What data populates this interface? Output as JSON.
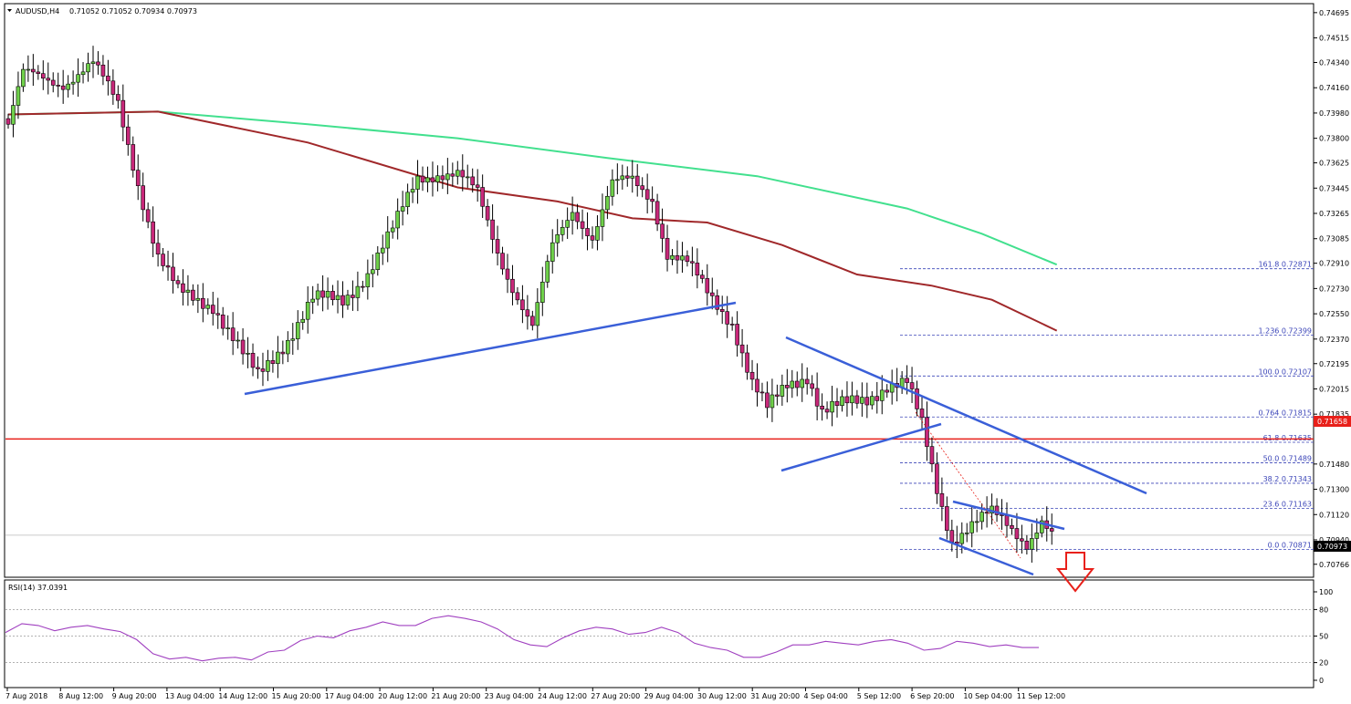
{
  "header": {
    "symbol": "AUDUSD,H4",
    "ohlc": "0.71052 0.71052 0.70934 0.70973"
  },
  "indicator": {
    "label": "RSI(14) 37.0391",
    "levels": [
      "100",
      "80",
      "50",
      "20",
      "0"
    ]
  },
  "colors": {
    "bull_fill": "#6fd04a",
    "bear_fill": "#c8287a",
    "wick": "#000000",
    "sma_fast": "#a0282a",
    "sma_slow": "#42e08e",
    "trendline": "#3a5fd8",
    "support": "#e8201a",
    "fib": "#3c46b8",
    "rsi_line": "#a040c0",
    "current_price_box": "#000000"
  },
  "chart_data": {
    "type": "candlestick",
    "ylim": [
      0.7068,
      0.7472
    ],
    "price_ticks": [
      "0.74695",
      "0.74515",
      "0.74340",
      "0.74160",
      "0.73980",
      "0.73800",
      "0.73625",
      "0.73445",
      "0.73265",
      "0.73085",
      "0.72910",
      "0.72730",
      "0.72550",
      "0.72370",
      "0.72195",
      "0.72015",
      "0.71835",
      "0.71480",
      "0.71300",
      "0.71120",
      "0.70940",
      "0.70766"
    ],
    "time_labels": [
      "7 Aug 2018",
      "8 Aug 12:00",
      "9 Aug 20:00",
      "13 Aug 04:00",
      "14 Aug 12:00",
      "15 Aug 20:00",
      "17 Aug 04:00",
      "20 Aug 12:00",
      "21 Aug 20:00",
      "23 Aug 04:00",
      "24 Aug 12:00",
      "27 Aug 20:00",
      "29 Aug 04:00",
      "30 Aug 12:00",
      "31 Aug 20:00",
      "4 Sep 04:00",
      "5 Sep 12:00",
      "6 Sep 20:00",
      "10 Sep 04:00",
      "11 Sep 12:00"
    ],
    "current_price": "0.70973",
    "support_price": "0.71658",
    "fib_levels": [
      {
        "label": "161.8 0.72871",
        "price": 0.72871
      },
      {
        "label": "1.236 0.72399",
        "price": 0.72399
      },
      {
        "label": "100.0 0.72107",
        "price": 0.72107
      },
      {
        "label": "0.764 0.71815",
        "price": 0.71815
      },
      {
        "label": "61.8 0.71635",
        "price": 0.71635
      },
      {
        "label": "50.0 0.71489",
        "price": 0.71489
      },
      {
        "label": "38.2 0.71343",
        "price": 0.71343
      },
      {
        "label": "23.6 0.71163",
        "price": 0.71163
      },
      {
        "label": "0.0 0.70871",
        "price": 0.70871
      }
    ],
    "anchors": [
      [
        0,
        0.739
      ],
      [
        3,
        0.7425
      ],
      [
        11,
        0.742
      ],
      [
        17,
        0.7432
      ],
      [
        22,
        0.7405
      ],
      [
        27,
        0.7335
      ],
      [
        30,
        0.7295
      ],
      [
        34,
        0.727
      ],
      [
        41,
        0.7262
      ],
      [
        47,
        0.7225
      ],
      [
        50,
        0.721
      ],
      [
        56,
        0.7238
      ],
      [
        61,
        0.7265
      ],
      [
        67,
        0.7264
      ],
      [
        72,
        0.7285
      ],
      [
        77,
        0.7314
      ],
      [
        82,
        0.7352
      ],
      [
        86,
        0.7356
      ],
      [
        90,
        0.7354
      ],
      [
        94,
        0.734
      ],
      [
        98,
        0.73
      ],
      [
        101,
        0.7275
      ],
      [
        105,
        0.7245
      ],
      [
        109,
        0.7302
      ],
      [
        113,
        0.733
      ],
      [
        117,
        0.731
      ],
      [
        121,
        0.7346
      ],
      [
        125,
        0.735
      ],
      [
        129,
        0.7338
      ],
      [
        132,
        0.7298
      ],
      [
        136,
        0.729
      ],
      [
        140,
        0.727
      ],
      [
        145,
        0.725
      ],
      [
        149,
        0.7205
      ],
      [
        152,
        0.7186
      ],
      [
        156,
        0.7205
      ],
      [
        160,
        0.7212
      ],
      [
        163,
        0.7185
      ],
      [
        168,
        0.719
      ],
      [
        172,
        0.7195
      ],
      [
        176,
        0.7205
      ],
      [
        180,
        0.7205
      ],
      [
        183,
        0.7175
      ],
      [
        186,
        0.713
      ],
      [
        189,
        0.7095
      ],
      [
        193,
        0.7105
      ],
      [
        197,
        0.7112
      ],
      [
        200,
        0.7105
      ],
      [
        204,
        0.7093
      ],
      [
        207,
        0.7108
      ],
      [
        209,
        0.7097
      ]
    ],
    "candle_count": 210,
    "sma_fast": [
      [
        0,
        0.7397
      ],
      [
        30,
        0.7399
      ],
      [
        60,
        0.7377
      ],
      [
        90,
        0.7345
      ],
      [
        110,
        0.7335
      ],
      [
        125,
        0.7323
      ],
      [
        140,
        0.732
      ],
      [
        155,
        0.7304
      ],
      [
        170,
        0.7283
      ],
      [
        185,
        0.7275
      ],
      [
        197,
        0.7265
      ],
      [
        210,
        0.7243
      ]
    ],
    "sma_slow": [
      [
        0,
        0.7397
      ],
      [
        30,
        0.7399
      ],
      [
        60,
        0.739
      ],
      [
        90,
        0.738
      ],
      [
        120,
        0.7366
      ],
      [
        150,
        0.7353
      ],
      [
        180,
        0.733
      ],
      [
        195,
        0.7312
      ],
      [
        210,
        0.729
      ]
    ],
    "rsi": [
      54,
      64,
      62,
      56,
      60,
      62,
      58,
      55,
      46,
      30,
      24,
      26,
      22,
      25,
      26,
      23,
      32,
      34,
      45,
      50,
      48,
      56,
      60,
      66,
      62,
      62,
      70,
      73,
      70,
      66,
      58,
      46,
      40,
      38,
      48,
      56,
      60,
      58,
      52,
      54,
      60,
      54,
      42,
      37,
      34,
      26,
      26,
      32,
      40,
      40,
      44,
      42,
      40,
      44,
      46,
      42,
      34,
      36,
      44,
      42,
      38,
      40,
      37,
      37
    ]
  }
}
